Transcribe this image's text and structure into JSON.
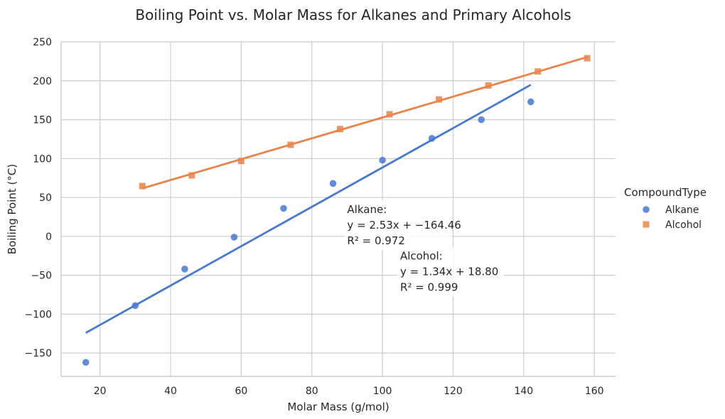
{
  "chart_data": {
    "type": "scatter",
    "title": "Boiling Point vs. Molar Mass for Alkanes and Primary Alcohols",
    "xlabel": "Molar Mass (g/mol)",
    "ylabel": "Boiling Point (°C)",
    "xlim": [
      9,
      166
    ],
    "ylim": [
      -180,
      250
    ],
    "xticks": [
      20,
      40,
      60,
      80,
      100,
      120,
      140,
      160
    ],
    "yticks": [
      -150,
      -100,
      -50,
      0,
      50,
      100,
      150,
      200,
      250
    ],
    "xtick_labels": [
      "20",
      "40",
      "60",
      "80",
      "100",
      "120",
      "140",
      "160"
    ],
    "ytick_labels": [
      "−150",
      "−100",
      "−50",
      "0",
      "50",
      "100",
      "150",
      "200",
      "250"
    ],
    "grid": true,
    "legend": {
      "title": "CompoundType",
      "placement": "right"
    },
    "series": [
      {
        "name": "Alkane",
        "color": "#4878cf",
        "marker": "circle",
        "x": [
          16,
          30,
          44,
          58,
          72,
          86,
          100,
          114,
          128,
          142
        ],
        "y": [
          -162,
          -89,
          -42,
          -1,
          36,
          68,
          98,
          126,
          150,
          173
        ],
        "fit": {
          "slope": 2.53,
          "intercept": -164.46,
          "x_range": [
            16,
            142
          ]
        }
      },
      {
        "name": "Alcohol",
        "color": "#e8844a",
        "marker": "square",
        "x": [
          32,
          46,
          60,
          74,
          88,
          102,
          116,
          130,
          144,
          158
        ],
        "y": [
          64.7,
          78.4,
          97,
          117.7,
          137.9,
          157,
          176,
          194,
          212,
          229
        ],
        "fit": {
          "slope": 1.34,
          "intercept": 18.8,
          "x_range": [
            32,
            158
          ]
        }
      }
    ],
    "annotations": [
      {
        "series": "Alkane",
        "lines": [
          "Alkane:",
          "y = 2.53x + −164.46",
          "R² = 0.972"
        ],
        "x": 90,
        "y": 30
      },
      {
        "series": "Alcohol",
        "lines": [
          "Alcohol:",
          "y = 1.34x + 18.80",
          "R² = 0.999"
        ],
        "x": 105,
        "y": -30
      }
    ]
  }
}
